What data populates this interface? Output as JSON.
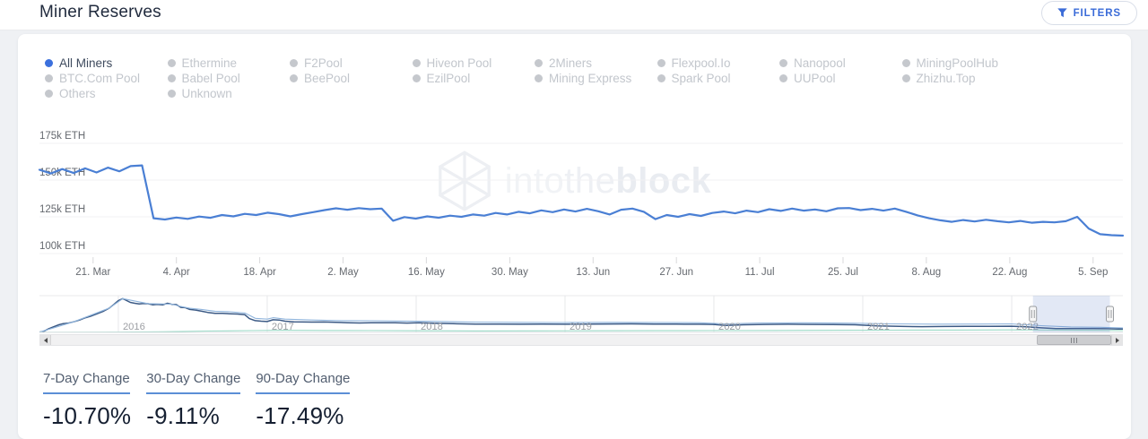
{
  "header": {
    "title": "Miner Reserves",
    "filters_label": "FILTERS"
  },
  "colors": {
    "accent_blue": "#3a6bd8",
    "line": "#4a7fd4",
    "legend_active_dot": "#3b70dd",
    "legend_active_text": "#3f4b5e",
    "legend_inactive_dot": "#c5c8cd",
    "legend_inactive_text": "#c2c6cc",
    "underline": "#5b8ed6"
  },
  "legend": {
    "columns": [
      [
        {
          "label": "All Miners",
          "active": true
        },
        {
          "label": "BTC.Com Pool",
          "active": false
        },
        {
          "label": "Others",
          "active": false
        }
      ],
      [
        {
          "label": "Ethermine",
          "active": false
        },
        {
          "label": "Babel Pool",
          "active": false
        },
        {
          "label": "Unknown",
          "active": false
        }
      ],
      [
        {
          "label": "F2Pool",
          "active": false
        },
        {
          "label": "BeePool",
          "active": false
        }
      ],
      [
        {
          "label": "Hiveon Pool",
          "active": false
        },
        {
          "label": "EzilPool",
          "active": false
        }
      ],
      [
        {
          "label": "2Miners",
          "active": false
        },
        {
          "label": "Mining Express",
          "active": false
        }
      ],
      [
        {
          "label": "Flexpool.Io",
          "active": false
        },
        {
          "label": "Spark Pool",
          "active": false
        }
      ],
      [
        {
          "label": "Nanopool",
          "active": false
        },
        {
          "label": "UUPool",
          "active": false
        }
      ],
      [
        {
          "label": "MiningPoolHub",
          "active": false
        },
        {
          "label": "Zhizhu.Top",
          "active": false
        }
      ]
    ]
  },
  "watermark": {
    "t1": "into",
    "t2": "the",
    "t3": "block"
  },
  "chart_data": {
    "type": "line",
    "title": "Miner Reserves",
    "series_name": "All Miners",
    "unit": "k ETH",
    "xlabel": "",
    "ylabel": "",
    "grid": true,
    "legend_position": "top",
    "x_range": [
      "12. Mar 2022",
      "10. Sep 2022"
    ],
    "ylim": [
      100,
      175
    ],
    "y_ticks": [
      {
        "value": 175,
        "label": "175k ETH"
      },
      {
        "value": 150,
        "label": "150k ETH"
      },
      {
        "value": 125,
        "label": "125k ETH"
      },
      {
        "value": 100,
        "label": "100k ETH"
      }
    ],
    "x_ticks": [
      {
        "f": 0.0495,
        "label": "21. Mar"
      },
      {
        "f": 0.1264,
        "label": "4. Apr"
      },
      {
        "f": 0.2033,
        "label": "18. Apr"
      },
      {
        "f": 0.2802,
        "label": "2. May"
      },
      {
        "f": 0.3571,
        "label": "16. May"
      },
      {
        "f": 0.4341,
        "label": "30. May"
      },
      {
        "f": 0.511,
        "label": "13. Jun"
      },
      {
        "f": 0.5879,
        "label": "27. Jun"
      },
      {
        "f": 0.6648,
        "label": "11. Jul"
      },
      {
        "f": 0.7417,
        "label": "25. Jul"
      },
      {
        "f": 0.8186,
        "label": "8. Aug"
      },
      {
        "f": 0.8956,
        "label": "22. Aug"
      },
      {
        "f": 0.9725,
        "label": "5. Sep"
      }
    ],
    "values": [
      157.0,
      154.5,
      157.5,
      154.8,
      158.0,
      155.2,
      158.5,
      156.0,
      159.5,
      160.0,
      124.0,
      123.2,
      124.5,
      123.6,
      125.2,
      124.3,
      126.2,
      125.3,
      127.0,
      126.2,
      127.8,
      126.8,
      125.3,
      126.8,
      128.2,
      129.6,
      130.8,
      129.8,
      130.9,
      130.2,
      130.6,
      122.3,
      124.8,
      123.8,
      125.3,
      124.4,
      125.8,
      125.0,
      126.6,
      125.8,
      127.6,
      126.6,
      128.4,
      127.4,
      129.4,
      128.2,
      130.0,
      128.6,
      130.4,
      128.8,
      126.6,
      129.8,
      130.6,
      128.4,
      123.4,
      126.2,
      125.0,
      126.8,
      125.6,
      127.6,
      128.6,
      127.4,
      129.2,
      128.2,
      130.2,
      129.0,
      130.6,
      129.2,
      130.0,
      128.8,
      130.8,
      131.0,
      129.6,
      130.4,
      129.2,
      130.6,
      128.4,
      126.0,
      124.0,
      122.6,
      121.6,
      122.8,
      121.8,
      123.0,
      122.0,
      121.2,
      122.2,
      121.0,
      121.6,
      121.2,
      122.0,
      125.0,
      117.0,
      113.2,
      112.5,
      112.2
    ],
    "navigator": {
      "x_range": [
        2015.47,
        2022.75
      ],
      "ylim": [
        0,
        1250
      ],
      "unit": "k ETH",
      "year_ticks": [
        {
          "f": 0.0728,
          "label": "2016"
        },
        {
          "f": 0.2102,
          "label": "2017"
        },
        {
          "f": 0.3477,
          "label": "2018"
        },
        {
          "f": 0.4851,
          "label": "2019"
        },
        {
          "f": 0.6225,
          "label": "2020"
        },
        {
          "f": 0.7599,
          "label": "2021"
        },
        {
          "f": 0.8974,
          "label": "2022"
        }
      ],
      "selection": {
        "from_f": 0.917,
        "to_f": 0.988
      },
      "series": [
        {
          "name": "all-miners-history",
          "color": "#3c5a85",
          "width": 1.5,
          "points": [
            [
              2015.47,
              8
            ],
            [
              2015.5,
              40
            ],
            [
              2015.53,
              120
            ],
            [
              2015.56,
              180
            ],
            [
              2015.6,
              260
            ],
            [
              2015.63,
              300
            ],
            [
              2015.66,
              310
            ],
            [
              2015.7,
              360
            ],
            [
              2015.74,
              420
            ],
            [
              2015.78,
              500
            ],
            [
              2015.82,
              560
            ],
            [
              2015.86,
              640
            ],
            [
              2015.9,
              720
            ],
            [
              2015.94,
              830
            ],
            [
              2015.97,
              950
            ],
            [
              2016.0,
              1080
            ],
            [
              2016.03,
              1150
            ],
            [
              2016.05,
              1100
            ],
            [
              2016.08,
              1020
            ],
            [
              2016.11,
              990
            ],
            [
              2016.14,
              965
            ],
            [
              2016.17,
              985
            ],
            [
              2016.2,
              975
            ],
            [
              2016.23,
              940
            ],
            [
              2016.26,
              955
            ],
            [
              2016.3,
              940
            ],
            [
              2016.33,
              990
            ],
            [
              2016.36,
              955
            ],
            [
              2016.39,
              945
            ],
            [
              2016.42,
              850
            ],
            [
              2016.45,
              840
            ],
            [
              2016.48,
              780
            ],
            [
              2016.52,
              760
            ],
            [
              2016.56,
              720
            ],
            [
              2016.6,
              680
            ],
            [
              2016.65,
              650
            ],
            [
              2016.7,
              645
            ],
            [
              2016.75,
              635
            ],
            [
              2016.8,
              625
            ],
            [
              2016.85,
              600
            ],
            [
              2016.88,
              470
            ],
            [
              2016.92,
              400
            ],
            [
              2016.96,
              380
            ],
            [
              2017.0,
              370
            ],
            [
              2017.04,
              430
            ],
            [
              2017.08,
              420
            ],
            [
              2017.12,
              380
            ],
            [
              2017.18,
              360
            ],
            [
              2017.24,
              355
            ],
            [
              2017.3,
              350
            ],
            [
              2017.38,
              355
            ],
            [
              2017.46,
              345
            ],
            [
              2017.54,
              330
            ],
            [
              2017.62,
              320
            ],
            [
              2017.7,
              325
            ],
            [
              2017.78,
              330
            ],
            [
              2017.86,
              325
            ],
            [
              2017.94,
              318
            ],
            [
              2018.02,
              325
            ],
            [
              2018.12,
              310
            ],
            [
              2018.25,
              295
            ],
            [
              2018.4,
              285
            ],
            [
              2018.55,
              280
            ],
            [
              2018.7,
              278
            ],
            [
              2018.85,
              282
            ],
            [
              2019.0,
              278
            ],
            [
              2019.15,
              282
            ],
            [
              2019.3,
              286
            ],
            [
              2019.45,
              290
            ],
            [
              2019.6,
              284
            ],
            [
              2019.75,
              280
            ],
            [
              2019.9,
              276
            ],
            [
              2020.0,
              272
            ],
            [
              2020.08,
              235
            ],
            [
              2020.2,
              260
            ],
            [
              2020.35,
              272
            ],
            [
              2020.5,
              276
            ],
            [
              2020.65,
              272
            ],
            [
              2020.8,
              266
            ],
            [
              2020.95,
              260
            ],
            [
              2021.1,
              220
            ],
            [
              2021.25,
              205
            ],
            [
              2021.4,
              195
            ],
            [
              2021.55,
              200
            ],
            [
              2021.7,
              205
            ],
            [
              2021.85,
              208
            ],
            [
              2022.0,
              210
            ],
            [
              2022.1,
              190
            ],
            [
              2022.2,
              156
            ],
            [
              2022.3,
              130
            ],
            [
              2022.42,
              128
            ],
            [
              2022.55,
              129
            ],
            [
              2022.65,
              125
            ],
            [
              2022.72,
              114
            ],
            [
              2022.75,
              112
            ]
          ]
        },
        {
          "name": "secondary-history",
          "color": "#8fb4dc",
          "width": 1.1,
          "points": [
            [
              2015.47,
              8
            ],
            [
              2015.7,
              360
            ],
            [
              2015.94,
              830
            ],
            [
              2016.03,
              1150
            ],
            [
              2016.2,
              980
            ],
            [
              2016.36,
              960
            ],
            [
              2016.42,
              880
            ],
            [
              2016.48,
              820
            ],
            [
              2016.56,
              780
            ],
            [
              2016.65,
              720
            ],
            [
              2016.75,
              700
            ],
            [
              2016.85,
              660
            ],
            [
              2016.92,
              480
            ],
            [
              2017.0,
              450
            ],
            [
              2017.04,
              500
            ],
            [
              2017.12,
              450
            ],
            [
              2017.3,
              420
            ],
            [
              2017.5,
              400
            ],
            [
              2017.7,
              395
            ],
            [
              2017.9,
              385
            ],
            [
              2018.1,
              375
            ],
            [
              2018.4,
              350
            ],
            [
              2018.7,
              340
            ],
            [
              2019.0,
              335
            ],
            [
              2019.3,
              340
            ],
            [
              2019.6,
              338
            ],
            [
              2019.9,
              330
            ],
            [
              2020.08,
              290
            ],
            [
              2020.3,
              320
            ],
            [
              2020.6,
              325
            ],
            [
              2020.9,
              315
            ],
            [
              2021.2,
              290
            ],
            [
              2021.5,
              280
            ],
            [
              2021.8,
              285
            ],
            [
              2022.0,
              290
            ],
            [
              2022.2,
              230
            ],
            [
              2022.4,
              185
            ],
            [
              2022.6,
              175
            ],
            [
              2022.75,
              150
            ]
          ]
        },
        {
          "name": "tertiary-history",
          "color": "#9ad9c6",
          "width": 1.1,
          "points": [
            [
              2015.47,
              4
            ],
            [
              2016.0,
              8
            ],
            [
              2016.3,
              20
            ],
            [
              2016.6,
              45
            ],
            [
              2016.9,
              60
            ],
            [
              2017.1,
              70
            ],
            [
              2017.4,
              65
            ],
            [
              2017.7,
              60
            ],
            [
              2018.0,
              55
            ],
            [
              2018.4,
              50
            ],
            [
              2018.8,
              52
            ],
            [
              2019.2,
              55
            ],
            [
              2019.6,
              58
            ],
            [
              2020.0,
              60
            ],
            [
              2020.4,
              65
            ],
            [
              2020.8,
              70
            ],
            [
              2021.2,
              75
            ],
            [
              2021.6,
              80
            ],
            [
              2022.0,
              85
            ],
            [
              2022.3,
              80
            ],
            [
              2022.6,
              70
            ],
            [
              2022.75,
              60
            ]
          ]
        }
      ]
    }
  },
  "scrollbar": {
    "from_f": 0.9197,
    "to_f": 0.988
  },
  "stats": [
    {
      "label": "7-Day Change",
      "value": "-10.70%"
    },
    {
      "label": "30-Day Change",
      "value": "-9.11%"
    },
    {
      "label": "90-Day Change",
      "value": "-17.49%"
    }
  ]
}
